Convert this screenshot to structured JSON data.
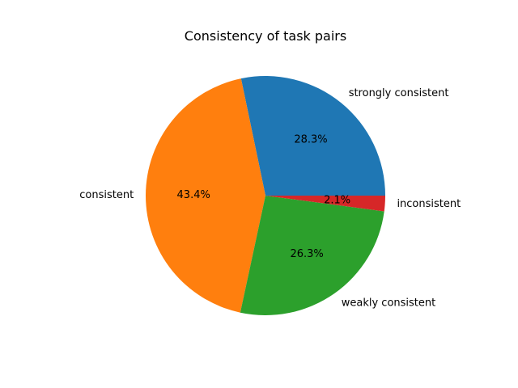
{
  "chart_data": {
    "type": "pie",
    "title": "Consistency of task pairs",
    "start_angle_deg": 0,
    "direction": "counterclockwise",
    "legend": "none",
    "slices": [
      {
        "label": "strongly consistent",
        "value": 28.3,
        "pct_label": "28.3%",
        "color": "#1f77b4"
      },
      {
        "label": "consistent",
        "value": 43.4,
        "pct_label": "43.4%",
        "color": "#ff7f0e"
      },
      {
        "label": "weakly consistent",
        "value": 26.3,
        "pct_label": "26.3%",
        "color": "#2ca02c"
      },
      {
        "label": "inconsistent",
        "value": 2.1,
        "pct_label": "2.1%",
        "color": "#d62728"
      }
    ]
  }
}
